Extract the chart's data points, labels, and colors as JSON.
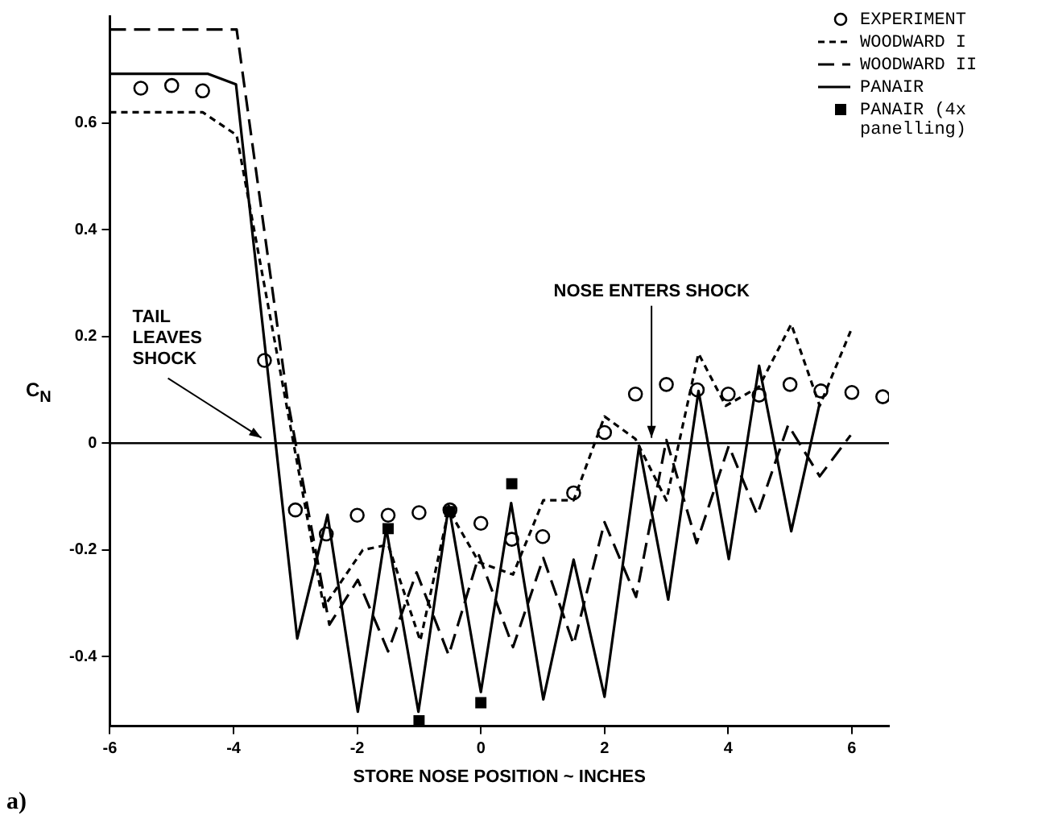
{
  "chart_data": {
    "type": "line",
    "xlabel": "STORE NOSE POSITION ~ INCHES",
    "ylabel": "C$_{N}$",
    "xlim": [
      -6,
      6.6
    ],
    "xticks": [
      -6,
      -4,
      -2,
      0,
      2,
      4,
      6
    ],
    "ylim": [
      -0.53,
      0.8
    ],
    "yticks": [
      -0.4,
      -0.2,
      0,
      0.2,
      0.4,
      0.6
    ],
    "grid": false,
    "legend": "top right",
    "ref_lines": [
      {
        "axis": "y",
        "value": 0,
        "color": "#000000"
      }
    ],
    "annotations": [
      {
        "text": "TAIL LEAVES SHOCK",
        "x": -3.55,
        "y": 0.01
      },
      {
        "text": "NOSE ENTERS SHOCK",
        "x": 2.76,
        "y": 0.01
      },
      "a)"
    ],
    "series": [
      {
        "name": "EXPERIMENT",
        "type": "scatter",
        "marker": "circle",
        "color": "#000000",
        "x": [
          -5.5,
          -5,
          -4.5,
          -3.5,
          -3,
          -2.5,
          -2,
          -1.5,
          -1,
          -0.5,
          0,
          0.5,
          1,
          1.5,
          2,
          2.5,
          3,
          3.5,
          4,
          4.5,
          5,
          5.5,
          6,
          6.5
        ],
        "values": [
          0.665,
          0.67,
          0.66,
          0.155,
          -0.125,
          -0.17,
          -0.135,
          -0.135,
          -0.13,
          -0.125,
          -0.15,
          -0.18,
          -0.175,
          -0.093,
          0.02,
          0.092,
          0.11,
          0.1,
          0.092,
          0.09,
          0.11,
          0.098,
          0.095,
          0.087
        ]
      },
      {
        "name": "WOODWARD I",
        "type": "line",
        "marker": "none",
        "line_style": "dotted",
        "color": "#000000",
        "x": [
          -6,
          -4.5,
          -3.95,
          -2.54,
          -1.91,
          -1.5,
          -0.98,
          -0.52,
          -0.03,
          0.52,
          1.01,
          1.5,
          2.0,
          2.5,
          3.0,
          3.52,
          3.96,
          4.5,
          5.02,
          5.48,
          5.98
        ],
        "values": [
          0.62,
          0.62,
          0.577,
          -0.307,
          -0.2,
          -0.19,
          -0.37,
          -0.125,
          -0.223,
          -0.246,
          -0.107,
          -0.107,
          0.05,
          0.008,
          -0.107,
          0.168,
          0.07,
          0.106,
          0.223,
          0.07,
          0.21
        ]
      },
      {
        "name": "WOODWARD II",
        "type": "line",
        "marker": "none",
        "line_style": "dashed",
        "color": "#000000",
        "x": [
          -6,
          -3.95,
          -3.13,
          -2.45,
          -1.99,
          -1.5,
          -1.04,
          -0.52,
          -0.03,
          0.52,
          1.01,
          1.5,
          2.0,
          2.51,
          3.0,
          3.49,
          4.01,
          4.47,
          4.97,
          5.48,
          5.98
        ],
        "values": [
          0.775,
          0.775,
          0.084,
          -0.34,
          -0.256,
          -0.39,
          -0.242,
          -0.397,
          -0.21,
          -0.382,
          -0.215,
          -0.377,
          -0.148,
          -0.288,
          0.006,
          -0.187,
          -0.005,
          -0.134,
          0.034,
          -0.062,
          0.015
        ]
      },
      {
        "name": "PANAIR",
        "type": "line",
        "marker": "none",
        "line_style": "solid",
        "color": "#000000",
        "x": [
          -6,
          -4.42,
          -3.96,
          -2.97,
          -2.48,
          -1.99,
          -1.53,
          -1.01,
          -0.52,
          0,
          0.49,
          1.01,
          1.5,
          2.0,
          2.56,
          3.03,
          3.52,
          4.01,
          4.5,
          5.02,
          5.48
        ],
        "values": [
          0.692,
          0.692,
          0.672,
          -0.366,
          -0.134,
          -0.503,
          -0.16,
          -0.503,
          -0.117,
          -0.466,
          -0.112,
          -0.48,
          -0.218,
          -0.475,
          -0.005,
          -0.293,
          0.098,
          -0.217,
          0.145,
          -0.165,
          0.075
        ]
      },
      {
        "name": "PANAIR (4x panelling)",
        "type": "scatter",
        "marker": "square",
        "color": "#000000",
        "x": [
          -1.5,
          -1,
          -0.5,
          0,
          0.5
        ],
        "values": [
          -0.16,
          -0.52,
          -0.128,
          -0.486,
          -0.076
        ]
      }
    ]
  }
}
